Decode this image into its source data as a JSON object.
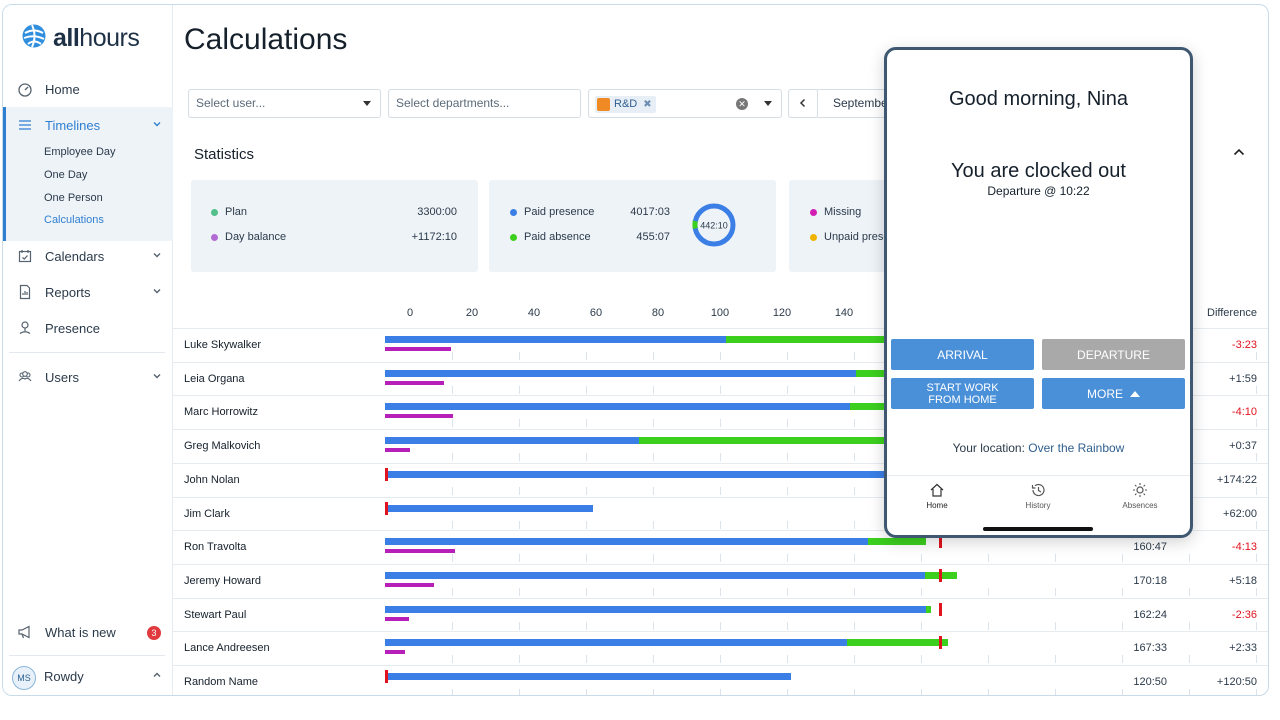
{
  "app": {
    "logo_bold": "all",
    "logo_rest": "hours",
    "page_title": "Calculations"
  },
  "sidebar": {
    "home": "Home",
    "timelines": "Timelines",
    "timeline_subitems": [
      "Employee Day",
      "One Day",
      "One Person",
      "Calculations"
    ],
    "calendars": "Calendars",
    "reports": "Reports",
    "presence": "Presence",
    "users": "Users",
    "whats_new": "What is new",
    "whats_new_count": "3",
    "user_initials": "MS",
    "user_name": "Rowdy"
  },
  "filters": {
    "user_placeholder": "Select user...",
    "departments_placeholder": "Select departments...",
    "department_tag": "R&D",
    "month": "September"
  },
  "statistics": {
    "title": "Statistics",
    "card1": [
      {
        "label": "Plan",
        "value": "3300:00",
        "color": "#52c08a"
      },
      {
        "label": "Day balance",
        "value": "+1172:10",
        "color": "#b26bd3"
      }
    ],
    "card2": [
      {
        "label": "Paid presence",
        "value": "4017:03",
        "color": "#3a7ee6"
      },
      {
        "label": "Paid absence",
        "value": "455:07",
        "color": "#3ccf1e"
      }
    ],
    "donut_value": "442:10",
    "card3": [
      {
        "label": "Missing",
        "color": "#d21fb3"
      },
      {
        "label": "Unpaid prese",
        "color": "#f0b400"
      }
    ]
  },
  "table": {
    "axis_ticks": [
      "0",
      "20",
      "40",
      "60",
      "80",
      "100",
      "120",
      "140"
    ],
    "difference_header": "Difference",
    "rows": [
      {
        "name": "Luke Skywalker",
        "total": "",
        "difference": "-3:23",
        "negative": true
      },
      {
        "name": "Leia Organa",
        "total": "",
        "difference": "+1:59",
        "negative": false
      },
      {
        "name": "Marc Horrowitz",
        "total": "",
        "difference": "-4:10",
        "negative": true
      },
      {
        "name": "Greg Malkovich",
        "total": "",
        "difference": "+0:37",
        "negative": false
      },
      {
        "name": "John Nolan",
        "total": "",
        "difference": "+174:22",
        "negative": false
      },
      {
        "name": "Jim Clark",
        "total": "",
        "difference": "+62:00",
        "negative": false
      },
      {
        "name": "Ron Travolta",
        "total": "160:47",
        "difference": "-4:13",
        "negative": true
      },
      {
        "name": "Jeremy Howard",
        "total": "170:18",
        "difference": "+5:18",
        "negative": false
      },
      {
        "name": "Stewart Paul",
        "total": "162:24",
        "difference": "-2:36",
        "negative": true
      },
      {
        "name": "Lance Andreesen",
        "total": "167:33",
        "difference": "+2:33",
        "negative": false
      },
      {
        "name": "Random Name",
        "total": "120:50",
        "difference": "+120:50",
        "negative": false
      }
    ]
  },
  "phone": {
    "greeting": "Good morning, Nina",
    "status": "You are clocked out",
    "departure": "Departure @ 10:22",
    "arrival_button": "ARRIVAL",
    "departure_button": "DEPARTURE",
    "wfh_line1": "START WORK",
    "wfh_line2": "FROM HOME",
    "more_button": "MORE",
    "location_label": "Your location:",
    "location_value": "Over the Rainbow",
    "tabs": [
      "Home",
      "History",
      "Absences"
    ]
  },
  "colors": {
    "accent": "#2f7fd1",
    "blue_bar": "#3a7ee6",
    "green_bar": "#3ccf1e",
    "purple_bar": "#b61fb8",
    "red": "#e0141e",
    "button_blue": "#4a90d9",
    "button_gray": "#a9a9a9"
  }
}
